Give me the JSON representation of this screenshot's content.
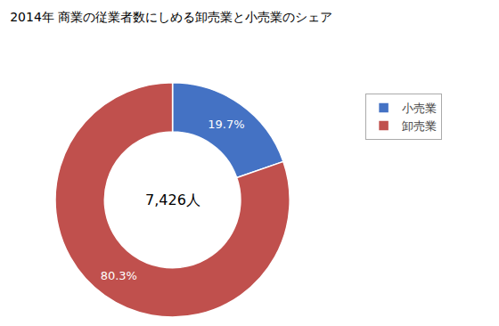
{
  "chart_data": {
    "type": "donut",
    "title": "2014年 商業の従業者数にしめる卸売業と小売業のシェア",
    "categories": [
      "小売業",
      "卸売業"
    ],
    "values": [
      19.7,
      80.3
    ],
    "value_labels": [
      "19.7%",
      "80.3%"
    ],
    "data_labels": true,
    "colors": [
      "#4472C4",
      "#C0504D"
    ],
    "annotations": [
      "7,426人"
    ],
    "legend": "upper right"
  }
}
